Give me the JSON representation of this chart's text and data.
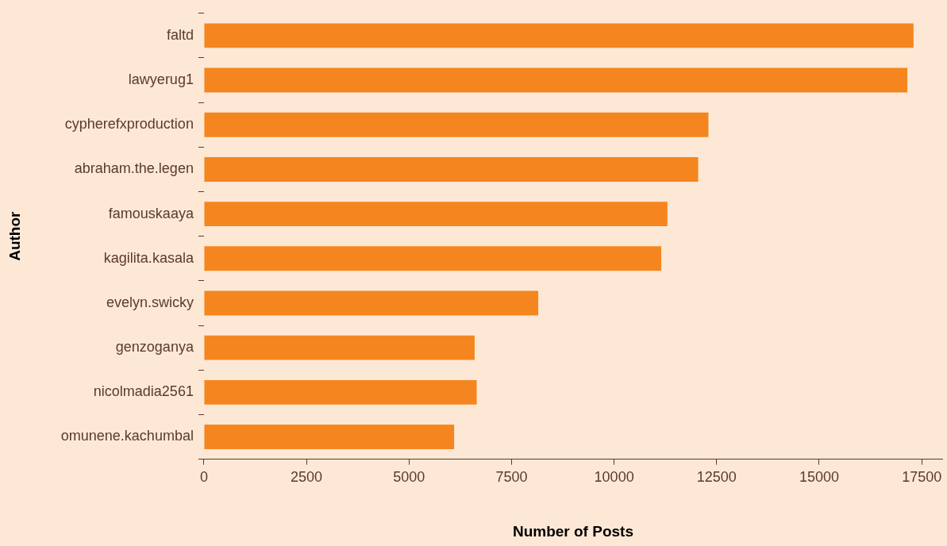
{
  "chart_data": {
    "type": "bar",
    "orientation": "horizontal",
    "xlabel": "Number of Posts",
    "ylabel": "Author",
    "categories": [
      "faltd",
      "lawyerug1",
      "cypherefxproduction",
      "abraham.the.legen",
      "famouskaaya",
      "kagilita.kasala",
      "evelyn.swicky",
      "genzoganya",
      "nicolmadia2561",
      "omunene.kachumbal"
    ],
    "values": [
      17300,
      17150,
      12300,
      12050,
      11300,
      11150,
      8150,
      6600,
      6650,
      6100
    ],
    "color": "#f5861f",
    "xlim": [
      0,
      18000
    ],
    "xticks": [
      0,
      2500,
      5000,
      7500,
      10000,
      12500,
      15000,
      17500
    ],
    "grid": false,
    "legend": false
  }
}
